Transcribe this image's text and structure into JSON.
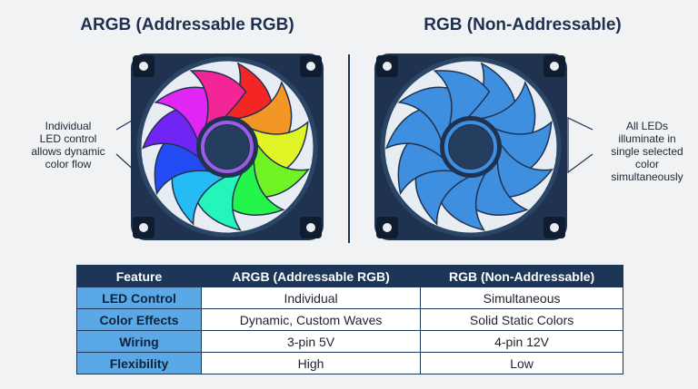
{
  "left_title": "ARGB (Addressable RGB)",
  "right_title": "RGB (Non-Addressable)",
  "left_note": [
    "Individual",
    "LED control",
    "allows dynamic",
    "color flow"
  ],
  "right_note": [
    "All LEDs",
    "illuminate in",
    "single selected",
    "color",
    "simultaneously"
  ],
  "table": {
    "header": [
      "Feature",
      "ARGB (Addressable RGB)",
      "RGB (Non-Addressable)"
    ],
    "rows": [
      [
        "LED Control",
        "Individual",
        "Simultaneous"
      ],
      [
        "Color Effects",
        "Dynamic, Custom Waves",
        "Solid Static Colors"
      ],
      [
        "Wiring",
        "3-pin 5V",
        "4-pin 12V"
      ],
      [
        "Flexibility",
        "High",
        "Low"
      ]
    ]
  }
}
